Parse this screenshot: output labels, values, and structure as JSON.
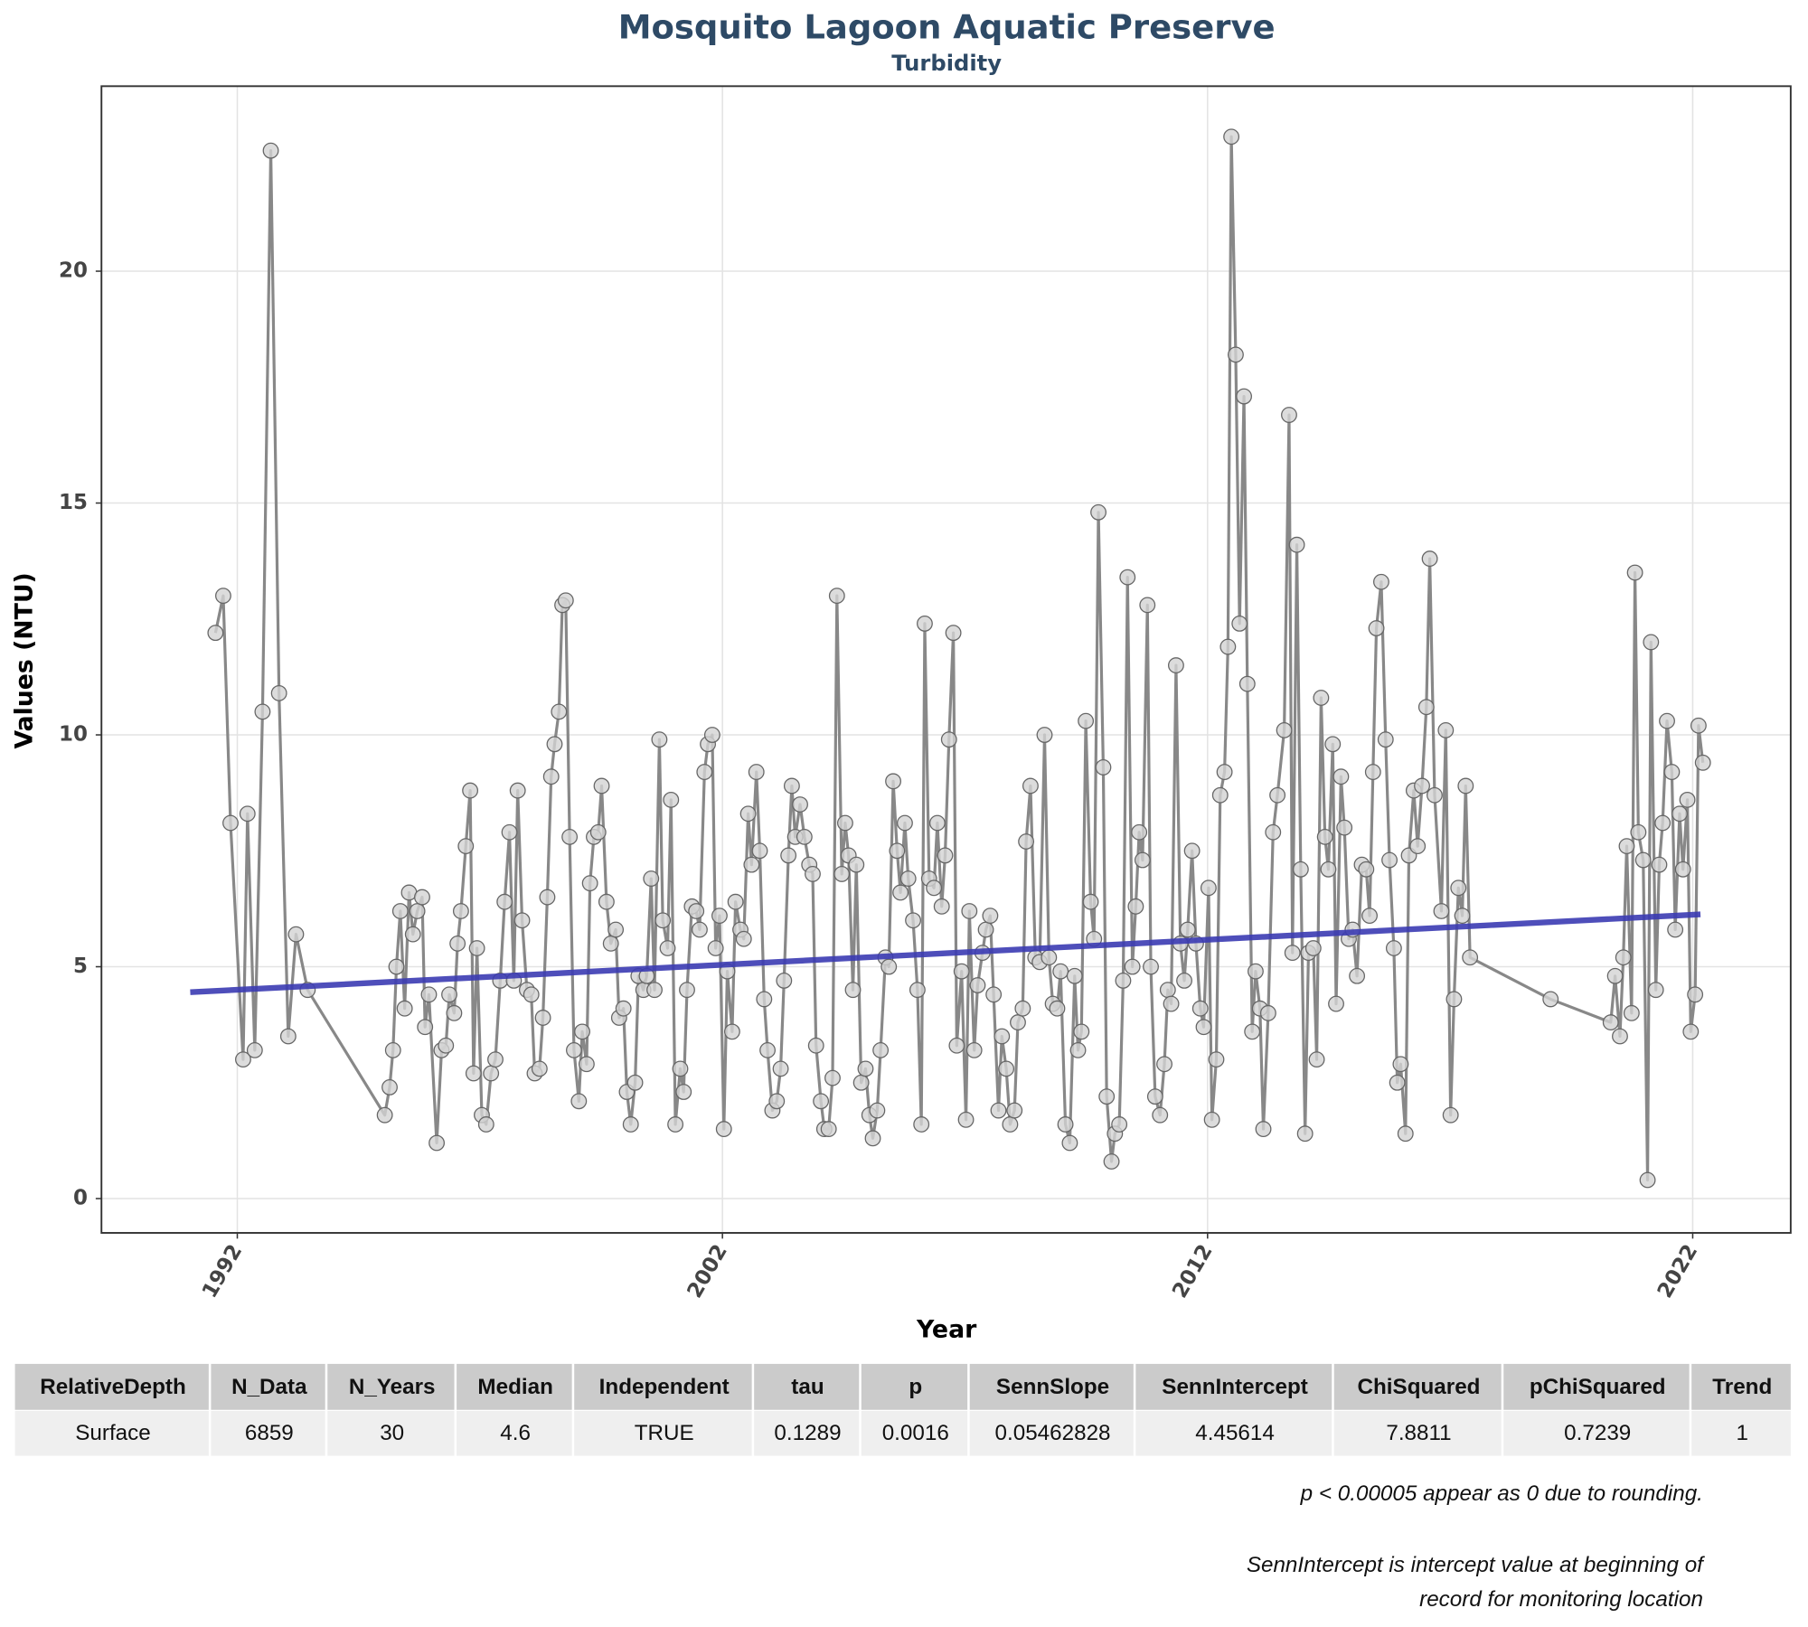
{
  "chart_data": {
    "type": "line",
    "title": "Mosquito Lagoon Aquatic Preserve",
    "subtitle": "Turbidity",
    "x_label": "Year",
    "y_label": "Values (NTU)",
    "xlim": [
      1989.2,
      2024.02
    ],
    "ylim": [
      -0.74,
      23.99
    ],
    "xticks": [
      1992,
      2002,
      2012,
      2022
    ],
    "yticks": [
      0,
      5,
      10,
      15,
      20
    ],
    "grid": true,
    "line_color": "#888888",
    "marker_color": "#d3d3d3",
    "x": [
      1991.55,
      1991.71,
      1991.86,
      1992.12,
      1992.21,
      1992.36,
      1992.52,
      1992.69,
      1992.86,
      1993.05,
      1993.21,
      1993.45,
      1995.04,
      1995.14,
      1995.21,
      1995.28,
      1995.36,
      1995.45,
      1995.54,
      1995.62,
      1995.71,
      1995.81,
      1995.87,
      1995.95,
      1996.11,
      1996.21,
      1996.3,
      1996.37,
      1996.47,
      1996.54,
      1996.61,
      1996.71,
      1996.8,
      1996.87,
      1996.94,
      1997.04,
      1997.13,
      1997.23,
      1997.32,
      1997.42,
      1997.51,
      1997.61,
      1997.7,
      1997.78,
      1997.87,
      1997.97,
      1998.06,
      1998.13,
      1998.23,
      1998.3,
      1998.39,
      1998.47,
      1998.54,
      1998.63,
      1998.7,
      1998.77,
      1998.85,
      1998.94,
      1999.04,
      1999.11,
      1999.2,
      1999.27,
      1999.35,
      1999.44,
      1999.51,
      1999.61,
      1999.7,
      1999.8,
      1999.87,
      1999.96,
      2000.03,
      2000.11,
      2000.2,
      2000.27,
      2000.37,
      2000.44,
      2000.53,
      2000.6,
      2000.7,
      2000.77,
      2000.87,
      2000.94,
      2001.03,
      2001.13,
      2001.2,
      2001.27,
      2001.37,
      2001.46,
      2001.53,
      2001.63,
      2001.7,
      2001.79,
      2001.86,
      2001.94,
      2002.03,
      2002.1,
      2002.2,
      2002.27,
      2002.37,
      2002.44,
      2002.53,
      2002.6,
      2002.7,
      2002.77,
      2002.86,
      2002.93,
      2003.03,
      2003.12,
      2003.2,
      2003.27,
      2003.36,
      2003.43,
      2003.5,
      2003.6,
      2003.69,
      2003.79,
      2003.86,
      2003.93,
      2004.03,
      2004.1,
      2004.19,
      2004.27,
      2004.36,
      2004.46,
      2004.53,
      2004.6,
      2004.69,
      2004.76,
      2004.86,
      2004.95,
      2005.03,
      2005.1,
      2005.19,
      2005.26,
      2005.36,
      2005.43,
      2005.52,
      2005.6,
      2005.67,
      2005.76,
      2005.83,
      2005.93,
      2006.02,
      2006.1,
      2006.17,
      2006.26,
      2006.36,
      2006.43,
      2006.52,
      2006.59,
      2006.67,
      2006.76,
      2006.83,
      2006.93,
      2007.02,
      2007.09,
      2007.19,
      2007.26,
      2007.36,
      2007.43,
      2007.52,
      2007.59,
      2007.69,
      2007.76,
      2007.85,
      2007.93,
      2008.02,
      2008.09,
      2008.19,
      2008.26,
      2008.35,
      2008.45,
      2008.54,
      2008.64,
      2008.73,
      2008.81,
      2008.9,
      2008.97,
      2009.07,
      2009.16,
      2009.26,
      2009.33,
      2009.4,
      2009.49,
      2009.59,
      2009.66,
      2009.75,
      2009.85,
      2009.92,
      2010.02,
      2010.09,
      2010.18,
      2010.26,
      2010.35,
      2010.45,
      2010.52,
      2010.59,
      2010.66,
      2010.76,
      2010.83,
      2010.92,
      2011.02,
      2011.11,
      2011.18,
      2011.25,
      2011.35,
      2011.44,
      2011.52,
      2011.59,
      2011.68,
      2011.76,
      2011.85,
      2011.92,
      2012.02,
      2012.09,
      2012.18,
      2012.26,
      2012.35,
      2012.42,
      2012.49,
      2012.58,
      2012.66,
      2012.75,
      2012.82,
      2012.92,
      2012.99,
      2013.08,
      2013.15,
      2013.25,
      2013.35,
      2013.44,
      2013.58,
      2013.68,
      2013.75,
      2013.84,
      2013.92,
      2014.01,
      2014.08,
      2014.18,
      2014.25,
      2014.34,
      2014.42,
      2014.49,
      2014.58,
      2014.65,
      2014.75,
      2014.82,
      2014.91,
      2014.99,
      2015.08,
      2015.18,
      2015.27,
      2015.34,
      2015.41,
      2015.48,
      2015.58,
      2015.67,
      2015.75,
      2015.84,
      2015.91,
      2015.98,
      2016.08,
      2016.15,
      2016.25,
      2016.33,
      2016.42,
      2016.51,
      2016.58,
      2016.68,
      2016.82,
      2016.91,
      2017.01,
      2017.08,
      2017.17,
      2017.25,
      2017.32,
      2017.41,
      2019.07,
      2020.31,
      2020.4,
      2020.5,
      2020.57,
      2020.64,
      2020.74,
      2020.81,
      2020.88,
      2020.98,
      2021.07,
      2021.14,
      2021.24,
      2021.31,
      2021.38,
      2021.47,
      2021.57,
      2021.64,
      2021.73,
      2021.8,
      2021.89,
      2021.96,
      2022.05,
      2022.12,
      2022.21
    ],
    "values": [
      12.2,
      13.0,
      8.1,
      3.0,
      8.3,
      3.2,
      10.5,
      22.6,
      10.9,
      3.5,
      5.7,
      4.5,
      1.8,
      2.4,
      3.2,
      5.0,
      6.2,
      4.1,
      6.6,
      5.7,
      6.2,
      6.5,
      3.7,
      4.4,
      1.2,
      3.2,
      3.3,
      4.4,
      4.0,
      5.5,
      6.2,
      7.6,
      8.8,
      2.7,
      5.4,
      1.8,
      1.6,
      2.7,
      3.0,
      4.7,
      6.4,
      7.9,
      4.7,
      8.8,
      6.0,
      4.5,
      4.4,
      2.7,
      2.8,
      3.9,
      6.5,
      9.1,
      9.8,
      10.5,
      12.8,
      12.9,
      7.8,
      3.2,
      2.1,
      3.6,
      2.9,
      6.8,
      7.8,
      7.9,
      8.9,
      6.4,
      5.5,
      5.8,
      3.9,
      4.1,
      2.3,
      1.6,
      2.5,
      4.8,
      4.5,
      4.8,
      6.9,
      4.5,
      9.9,
      6.0,
      5.4,
      8.6,
      1.6,
      2.8,
      2.3,
      4.5,
      6.3,
      6.2,
      5.8,
      9.2,
      9.8,
      10.0,
      5.4,
      6.1,
      1.5,
      4.9,
      3.6,
      6.4,
      5.8,
      5.6,
      8.3,
      7.2,
      9.2,
      7.5,
      4.3,
      3.2,
      1.9,
      2.1,
      2.8,
      4.7,
      7.4,
      8.9,
      7.8,
      8.5,
      7.8,
      7.2,
      7.0,
      3.3,
      2.1,
      1.5,
      1.5,
      2.6,
      13.0,
      7.0,
      8.1,
      7.4,
      4.5,
      7.2,
      2.5,
      2.8,
      1.8,
      1.3,
      1.9,
      3.2,
      5.2,
      5.0,
      9.0,
      7.5,
      6.6,
      8.1,
      6.9,
      6.0,
      4.5,
      1.6,
      12.4,
      6.9,
      6.7,
      8.1,
      6.3,
      7.4,
      9.9,
      12.2,
      3.3,
      4.9,
      1.7,
      6.2,
      3.2,
      4.6,
      5.3,
      5.8,
      6.1,
      4.4,
      1.9,
      3.5,
      2.8,
      1.6,
      1.9,
      3.8,
      4.1,
      7.7,
      8.9,
      5.2,
      5.1,
      10.0,
      5.2,
      4.2,
      4.1,
      4.9,
      1.6,
      1.2,
      4.8,
      3.2,
      3.6,
      10.3,
      6.4,
      5.6,
      14.8,
      9.3,
      2.2,
      0.8,
      1.4,
      1.6,
      4.7,
      13.4,
      5.0,
      6.3,
      7.9,
      7.3,
      12.8,
      5.0,
      2.2,
      1.8,
      2.9,
      4.5,
      4.2,
      11.5,
      5.5,
      4.7,
      5.8,
      7.5,
      5.5,
      4.1,
      3.7,
      6.7,
      1.7,
      3.0,
      8.7,
      9.2,
      11.9,
      22.9,
      18.2,
      12.4,
      17.3,
      11.1,
      3.6,
      4.9,
      4.1,
      1.5,
      4.0,
      7.9,
      8.7,
      10.1,
      16.9,
      5.3,
      14.1,
      7.1,
      1.4,
      5.3,
      5.4,
      3.0,
      10.8,
      7.8,
      7.1,
      9.8,
      4.2,
      9.1,
      8.0,
      5.6,
      5.8,
      4.8,
      7.2,
      7.1,
      6.1,
      9.2,
      12.3,
      13.3,
      9.9,
      7.3,
      5.4,
      2.5,
      2.9,
      1.4,
      7.4,
      8.8,
      7.6,
      8.9,
      10.6,
      13.8,
      8.7,
      6.2,
      10.1,
      1.8,
      4.3,
      6.7,
      6.1,
      8.9,
      5.2,
      4.3,
      3.8,
      4.8,
      3.5,
      5.2,
      7.6,
      4.0,
      13.5,
      7.9,
      7.3,
      0.4,
      12.0,
      4.5,
      7.2,
      8.1,
      10.3,
      9.2,
      5.8,
      8.3,
      7.1,
      8.6,
      3.6,
      4.4,
      10.2,
      9.4
    ],
    "trend": {
      "color": "#3b3bb3",
      "x": [
        1991.03,
        2022.16
      ],
      "values": [
        4.45,
        6.13
      ]
    },
    "table": {
      "columns": [
        "RelativeDepth",
        "N_Data",
        "N_Years",
        "Median",
        "Independent",
        "tau",
        "p",
        "SennSlope",
        "SennIntercept",
        "ChiSquared",
        "pChiSquared",
        "Trend"
      ],
      "rows": [
        [
          "Surface",
          "6859",
          "30",
          "4.6",
          "TRUE",
          "0.1289",
          "0.0016",
          "0.05462828",
          "4.45614",
          "7.8811",
          "0.7239",
          "1"
        ]
      ]
    },
    "notes": [
      "p < 0.00005 appear as 0 due to rounding.",
      "SennIntercept is intercept value at beginning of",
      "record for monitoring location"
    ]
  }
}
